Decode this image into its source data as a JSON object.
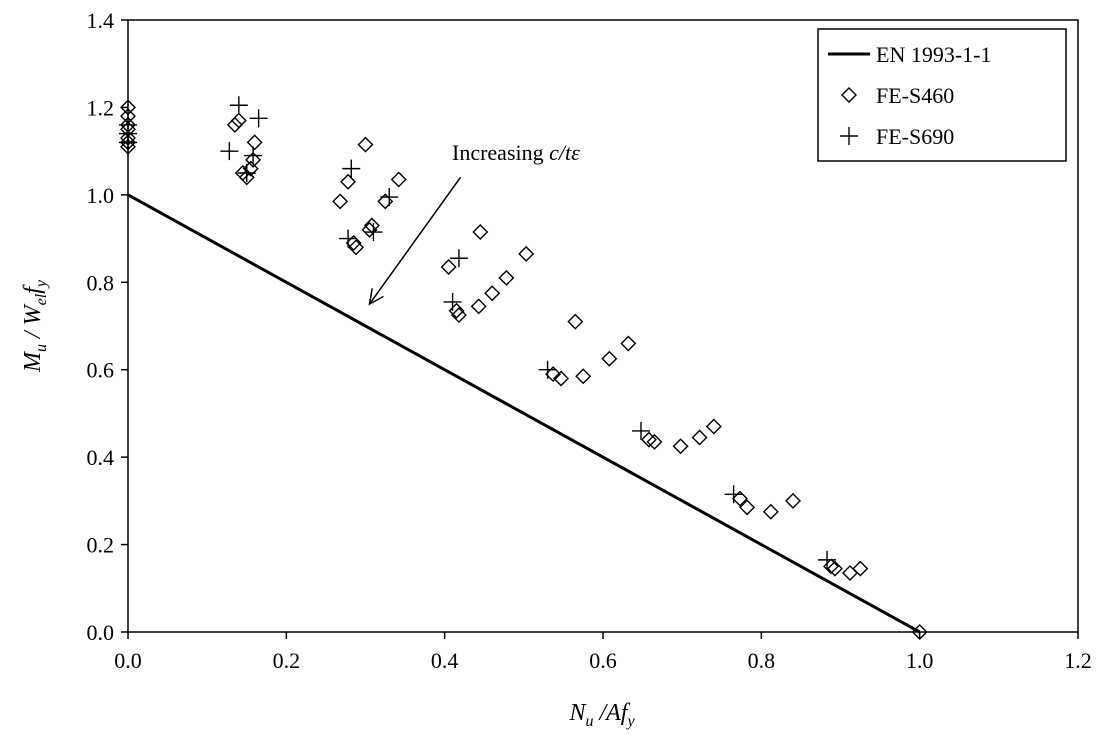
{
  "chart_data": {
    "type": "scatter",
    "xlabel": {
      "main": "N",
      "sub": "u",
      "rest": " /Af",
      "sub2": "y"
    },
    "ylabel": {
      "p1": "M",
      "s1": "u",
      "p2": " / W",
      "s2": "el",
      "p3": "f",
      "s3": "y"
    },
    "xlim": [
      0,
      1.2
    ],
    "ylim": [
      0,
      1.4
    ],
    "x_ticks": [
      "0.0",
      "0.2",
      "0.4",
      "0.6",
      "0.8",
      "1.0",
      "1.2"
    ],
    "y_ticks": [
      "0.0",
      "0.2",
      "0.4",
      "0.6",
      "0.8",
      "1.0",
      "1.2",
      "1.4"
    ],
    "grid": false,
    "legend_position": "top-right",
    "annotation": {
      "prefix": "Increasing ",
      "italic": "c/tε",
      "from": [
        0.42,
        1.04
      ],
      "to": [
        0.305,
        0.75
      ]
    },
    "series": [
      {
        "name": "EN 1993-1-1",
        "kind": "line",
        "color": "#000000",
        "points": [
          [
            0,
            1.0
          ],
          [
            1.0,
            0.0
          ]
        ]
      },
      {
        "name": "FE-S460",
        "kind": "diamond",
        "color": "#000000",
        "points": [
          [
            0,
            1.2
          ],
          [
            0,
            1.18
          ],
          [
            0,
            1.16
          ],
          [
            0,
            1.15
          ],
          [
            0,
            1.13
          ],
          [
            0,
            1.12
          ],
          [
            0,
            1.11
          ],
          [
            0.135,
            1.16
          ],
          [
            0.14,
            1.17
          ],
          [
            0.145,
            1.05
          ],
          [
            0.15,
            1.04
          ],
          [
            0.155,
            1.06
          ],
          [
            0.158,
            1.08
          ],
          [
            0.16,
            1.12
          ],
          [
            0.268,
            0.985
          ],
          [
            0.278,
            1.03
          ],
          [
            0.285,
            0.89
          ],
          [
            0.288,
            0.88
          ],
          [
            0.3,
            1.115
          ],
          [
            0.305,
            0.92
          ],
          [
            0.308,
            0.93
          ],
          [
            0.325,
            0.985
          ],
          [
            0.342,
            1.035
          ],
          [
            0.405,
            0.835
          ],
          [
            0.415,
            0.735
          ],
          [
            0.418,
            0.725
          ],
          [
            0.443,
            0.745
          ],
          [
            0.445,
            0.915
          ],
          [
            0.46,
            0.775
          ],
          [
            0.478,
            0.81
          ],
          [
            0.503,
            0.865
          ],
          [
            0.537,
            0.59
          ],
          [
            0.547,
            0.58
          ],
          [
            0.565,
            0.71
          ],
          [
            0.575,
            0.585
          ],
          [
            0.608,
            0.625
          ],
          [
            0.632,
            0.66
          ],
          [
            0.658,
            0.44
          ],
          [
            0.665,
            0.435
          ],
          [
            0.698,
            0.425
          ],
          [
            0.722,
            0.445
          ],
          [
            0.74,
            0.47
          ],
          [
            0.773,
            0.305
          ],
          [
            0.782,
            0.285
          ],
          [
            0.812,
            0.275
          ],
          [
            0.84,
            0.3
          ],
          [
            0.888,
            0.15
          ],
          [
            0.893,
            0.145
          ],
          [
            0.912,
            0.135
          ],
          [
            0.925,
            0.145
          ],
          [
            1.0,
            0.0
          ]
        ]
      },
      {
        "name": "FE-S690",
        "kind": "plus",
        "color": "#000000",
        "points": [
          [
            0,
            1.12
          ],
          [
            0,
            1.14
          ],
          [
            0,
            1.16
          ],
          [
            0.128,
            1.1
          ],
          [
            0.14,
            1.205
          ],
          [
            0.15,
            1.05
          ],
          [
            0.158,
            1.09
          ],
          [
            0.165,
            1.175
          ],
          [
            0.278,
            0.9
          ],
          [
            0.282,
            1.06
          ],
          [
            0.31,
            0.915
          ],
          [
            0.33,
            0.995
          ],
          [
            0.41,
            0.755
          ],
          [
            0.418,
            0.855
          ],
          [
            0.53,
            0.6
          ],
          [
            0.648,
            0.46
          ],
          [
            0.765,
            0.315
          ],
          [
            0.883,
            0.165
          ]
        ]
      }
    ]
  }
}
